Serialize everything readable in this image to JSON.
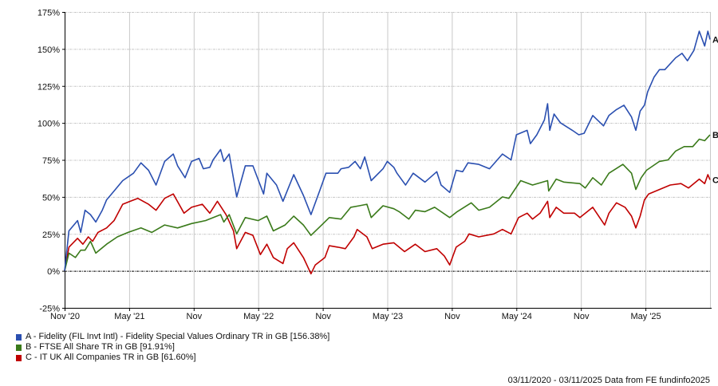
{
  "chart_data": {
    "type": "line",
    "title": "",
    "xlabel": "",
    "ylabel": "",
    "x_unit": "months since 03/11/2020",
    "xlim": [
      0,
      60
    ],
    "ylim": [
      -25,
      175
    ],
    "grid": true,
    "y_ticks": [
      -25,
      0,
      25,
      50,
      75,
      100,
      125,
      150,
      175
    ],
    "y_tick_labels": [
      "-25%",
      "0%",
      "25%",
      "50%",
      "75%",
      "100%",
      "125%",
      "150%",
      "175%"
    ],
    "x_ticks": [
      0,
      6,
      12,
      18,
      24,
      30,
      36,
      42,
      48,
      54
    ],
    "x_tick_labels": [
      "Nov '20",
      "May '21",
      "Nov",
      "May '22",
      "Nov",
      "May '23",
      "Nov",
      "May '24",
      "Nov",
      "May '25"
    ],
    "legend_placement": "bottom-left",
    "series": [
      {
        "id": "A",
        "name": "A - Fidelity (FIL Invt Intl) - Fidelity Special Values Ordinary TR in GB [156.38%]",
        "color": "#2a4fb0",
        "points": [
          [
            0,
            0
          ],
          [
            0.4,
            27
          ],
          [
            1.2,
            34
          ],
          [
            1.5,
            26
          ],
          [
            1.9,
            41
          ],
          [
            2.4,
            38
          ],
          [
            2.9,
            33
          ],
          [
            3.5,
            41
          ],
          [
            3.9,
            48
          ],
          [
            4.6,
            54
          ],
          [
            5.4,
            61
          ],
          [
            6.4,
            66
          ],
          [
            7.1,
            73
          ],
          [
            7.8,
            68
          ],
          [
            8.5,
            58
          ],
          [
            9.3,
            74
          ],
          [
            10.1,
            79
          ],
          [
            10.5,
            71
          ],
          [
            11.2,
            63
          ],
          [
            11.8,
            74
          ],
          [
            12.5,
            76
          ],
          [
            12.9,
            69
          ],
          [
            13.5,
            70
          ],
          [
            13.8,
            75
          ],
          [
            14.5,
            82
          ],
          [
            14.8,
            74
          ],
          [
            15.3,
            79
          ],
          [
            16,
            50
          ],
          [
            16.8,
            71
          ],
          [
            17.5,
            71
          ],
          [
            18.5,
            52
          ],
          [
            18.8,
            66
          ],
          [
            19.7,
            58
          ],
          [
            20.3,
            47
          ],
          [
            21.3,
            65
          ],
          [
            22.2,
            51
          ],
          [
            22.9,
            38
          ],
          [
            23.7,
            54
          ],
          [
            24.3,
            66
          ],
          [
            25.4,
            66
          ],
          [
            25.7,
            69
          ],
          [
            26.4,
            70
          ],
          [
            27,
            74
          ],
          [
            27.5,
            69
          ],
          [
            27.9,
            77
          ],
          [
            28.5,
            61
          ],
          [
            29.6,
            69
          ],
          [
            30,
            74
          ],
          [
            30.6,
            70
          ],
          [
            30.9,
            66
          ],
          [
            31.7,
            58
          ],
          [
            32.4,
            66
          ],
          [
            33.5,
            60
          ],
          [
            34.6,
            67
          ],
          [
            35,
            58
          ],
          [
            35.8,
            53
          ],
          [
            36.4,
            68
          ],
          [
            37,
            67
          ],
          [
            37.5,
            73
          ],
          [
            38.5,
            72
          ],
          [
            39.5,
            69
          ],
          [
            40.7,
            79
          ],
          [
            41.5,
            75
          ],
          [
            42,
            92
          ],
          [
            43,
            95
          ],
          [
            43.3,
            86
          ],
          [
            43.9,
            92
          ],
          [
            44.6,
            102
          ],
          [
            44.9,
            113
          ],
          [
            45.1,
            95
          ],
          [
            45.5,
            106
          ],
          [
            46.1,
            100
          ],
          [
            47.2,
            95
          ],
          [
            47.8,
            92
          ],
          [
            48.3,
            93
          ],
          [
            49.1,
            105
          ],
          [
            50.1,
            98
          ],
          [
            50.6,
            105
          ],
          [
            51.3,
            109
          ],
          [
            52,
            112
          ],
          [
            52.7,
            104
          ],
          [
            53.1,
            95
          ],
          [
            53.5,
            108
          ],
          [
            53.9,
            112
          ],
          [
            54.2,
            121
          ],
          [
            54.8,
            131
          ],
          [
            55.3,
            136
          ],
          [
            55.8,
            136
          ],
          [
            56.8,
            144
          ],
          [
            57.4,
            147
          ],
          [
            57.9,
            142
          ],
          [
            58.5,
            149
          ],
          [
            59,
            162
          ],
          [
            59.5,
            152
          ],
          [
            59.8,
            162
          ],
          [
            60,
            156.38
          ]
        ]
      },
      {
        "id": "B",
        "name": "B - FTSE All Share TR in GB [91.91%]",
        "color": "#3a7a1a",
        "points": [
          [
            0,
            0
          ],
          [
            0.4,
            12
          ],
          [
            1,
            9
          ],
          [
            1.5,
            14
          ],
          [
            1.9,
            14
          ],
          [
            2.4,
            20
          ],
          [
            2.9,
            12
          ],
          [
            3.9,
            18
          ],
          [
            4.9,
            23
          ],
          [
            5.9,
            26
          ],
          [
            7.1,
            29
          ],
          [
            8.1,
            26
          ],
          [
            9.3,
            31
          ],
          [
            10.5,
            29
          ],
          [
            11.8,
            32
          ],
          [
            13.1,
            34
          ],
          [
            14.5,
            38
          ],
          [
            14.8,
            33
          ],
          [
            15.3,
            38
          ],
          [
            16,
            25
          ],
          [
            16.8,
            36
          ],
          [
            18,
            34
          ],
          [
            18.8,
            37
          ],
          [
            19.4,
            27
          ],
          [
            20.5,
            31
          ],
          [
            21.3,
            37
          ],
          [
            22.2,
            31
          ],
          [
            22.9,
            24
          ],
          [
            23.9,
            31
          ],
          [
            24.6,
            36
          ],
          [
            25.7,
            35
          ],
          [
            26.6,
            43
          ],
          [
            27.4,
            44
          ],
          [
            28.1,
            45
          ],
          [
            28.5,
            36
          ],
          [
            29.6,
            44
          ],
          [
            30.6,
            42
          ],
          [
            31.1,
            40
          ],
          [
            32,
            35
          ],
          [
            32.6,
            41
          ],
          [
            33.5,
            40
          ],
          [
            34.4,
            43
          ],
          [
            35.8,
            36
          ],
          [
            36.5,
            40
          ],
          [
            37.8,
            46
          ],
          [
            38.5,
            41
          ],
          [
            39.5,
            43
          ],
          [
            40.7,
            50
          ],
          [
            41.3,
            49
          ],
          [
            42.4,
            61
          ],
          [
            43.5,
            58
          ],
          [
            44.9,
            61
          ],
          [
            45,
            54
          ],
          [
            45.7,
            62
          ],
          [
            46.4,
            60
          ],
          [
            47.9,
            59
          ],
          [
            48.4,
            56
          ],
          [
            49.1,
            63
          ],
          [
            49.9,
            58
          ],
          [
            50.6,
            66
          ],
          [
            51.9,
            72
          ],
          [
            52.7,
            66
          ],
          [
            53.1,
            55
          ],
          [
            53.6,
            63
          ],
          [
            54.1,
            68
          ],
          [
            55.3,
            74
          ],
          [
            56.1,
            75
          ],
          [
            56.8,
            81
          ],
          [
            57.6,
            84
          ],
          [
            58.4,
            84
          ],
          [
            59,
            89
          ],
          [
            59.5,
            88
          ],
          [
            60,
            91.91
          ]
        ]
      },
      {
        "id": "C",
        "name": "C - IT UK All Companies TR in GB [61.60%]",
        "color": "#c00000",
        "points": [
          [
            0,
            0
          ],
          [
            0.4,
            16
          ],
          [
            1.2,
            22
          ],
          [
            1.7,
            18
          ],
          [
            2.2,
            23
          ],
          [
            2.6,
            20
          ],
          [
            3.1,
            26
          ],
          [
            3.9,
            29
          ],
          [
            4.6,
            34
          ],
          [
            5.4,
            45
          ],
          [
            6.1,
            47
          ],
          [
            6.8,
            49
          ],
          [
            7.8,
            45
          ],
          [
            8.5,
            41
          ],
          [
            9.3,
            49
          ],
          [
            10.1,
            52
          ],
          [
            11.1,
            39
          ],
          [
            11.8,
            43
          ],
          [
            12.8,
            45
          ],
          [
            13.5,
            39
          ],
          [
            14.2,
            47
          ],
          [
            15,
            38
          ],
          [
            15.7,
            27
          ],
          [
            16,
            15
          ],
          [
            16.8,
            26
          ],
          [
            17.5,
            24
          ],
          [
            18.2,
            11
          ],
          [
            18.8,
            18
          ],
          [
            19.4,
            9
          ],
          [
            20.3,
            5
          ],
          [
            20.7,
            15
          ],
          [
            21.3,
            19
          ],
          [
            22.2,
            9
          ],
          [
            22.9,
            -2
          ],
          [
            23.3,
            4
          ],
          [
            24.2,
            9
          ],
          [
            24.6,
            17
          ],
          [
            25.4,
            16
          ],
          [
            26.1,
            15
          ],
          [
            26.9,
            23
          ],
          [
            27.2,
            28
          ],
          [
            28.1,
            23
          ],
          [
            28.6,
            15
          ],
          [
            29.6,
            18
          ],
          [
            30.6,
            19
          ],
          [
            31.6,
            13
          ],
          [
            32.6,
            18
          ],
          [
            33.5,
            13
          ],
          [
            34.6,
            15
          ],
          [
            35.3,
            10
          ],
          [
            35.8,
            4
          ],
          [
            36.4,
            16
          ],
          [
            37.2,
            20
          ],
          [
            37.6,
            25
          ],
          [
            38.5,
            23
          ],
          [
            39.9,
            25
          ],
          [
            40.7,
            28
          ],
          [
            41.5,
            25
          ],
          [
            42.2,
            36
          ],
          [
            43,
            39
          ],
          [
            43.5,
            35
          ],
          [
            44.2,
            39
          ],
          [
            44.9,
            47
          ],
          [
            45.1,
            36
          ],
          [
            45.7,
            43
          ],
          [
            46.4,
            39
          ],
          [
            47.4,
            39
          ],
          [
            47.9,
            36
          ],
          [
            49.1,
            43
          ],
          [
            50.2,
            31
          ],
          [
            50.6,
            39
          ],
          [
            51.3,
            46
          ],
          [
            52.1,
            43
          ],
          [
            52.7,
            37
          ],
          [
            53.1,
            29
          ],
          [
            53.5,
            37
          ],
          [
            53.9,
            48
          ],
          [
            54.3,
            52
          ],
          [
            55.3,
            55
          ],
          [
            56.3,
            58
          ],
          [
            57.3,
            59
          ],
          [
            58,
            56
          ],
          [
            59,
            62
          ],
          [
            59.5,
            59
          ],
          [
            59.8,
            65
          ],
          [
            60,
            61.6
          ]
        ]
      }
    ]
  },
  "legend": [
    {
      "label": "A - Fidelity (FIL Invt Intl) - Fidelity Special Values Ordinary TR in GB [156.38%]",
      "color": "#2a4fb0"
    },
    {
      "label": "B - FTSE All Share TR in GB [91.91%]",
      "color": "#3a7a1a"
    },
    {
      "label": "C - IT UK All Companies TR in GB [61.60%]",
      "color": "#c00000"
    }
  ],
  "footer": "03/11/2020 - 03/11/2025 Data from FE fundinfo2025"
}
